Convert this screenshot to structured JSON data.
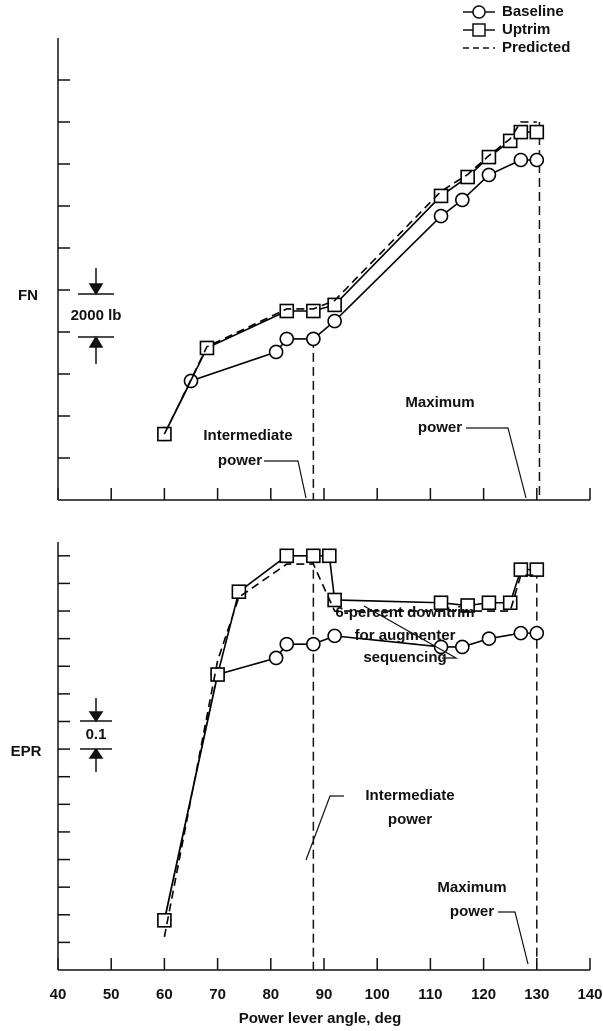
{
  "legend_names": [
    "Baseline",
    "Uptrim",
    "Predicted"
  ],
  "chart_data": [
    {
      "type": "line",
      "ylabel": "FN",
      "scale_label": "2000 lb",
      "xlim": [
        40,
        140
      ],
      "xticks": [
        40,
        50,
        60,
        70,
        80,
        90,
        100,
        110,
        120,
        130,
        140
      ],
      "ylim": [
        0,
        22000
      ],
      "yticks": [
        2000,
        4000,
        6000,
        8000,
        10000,
        12000,
        14000,
        16000,
        18000,
        20000
      ],
      "vlines": [
        {
          "x": 88,
          "from": 7670
        },
        {
          "x": 130.5,
          "from": 18000
        }
      ],
      "annotations": [
        {
          "text": [
            "Intermediate",
            "power"
          ]
        },
        {
          "text": [
            "Maximum",
            "power"
          ]
        }
      ],
      "series": [
        {
          "name": "Baseline",
          "marker": "circle",
          "color": "#000000",
          "x": [
            60,
            65,
            81,
            83,
            88,
            92,
            112,
            116,
            121,
            127,
            130
          ],
          "values": [
            3140,
            5670,
            7050,
            7670,
            7670,
            8520,
            13520,
            14290,
            15480,
            16190,
            16190
          ]
        },
        {
          "name": "Uptrim",
          "marker": "square",
          "color": "#000000",
          "x": [
            60,
            68,
            83,
            88,
            92,
            112,
            117,
            121,
            125,
            127,
            130
          ],
          "values": [
            3140,
            7240,
            9000,
            9000,
            9290,
            14480,
            15380,
            16330,
            17100,
            17520,
            17520
          ]
        },
        {
          "name": "Predicted",
          "marker": "dashed",
          "color": "#000000",
          "x": [
            60,
            68,
            83,
            88,
            92,
            112,
            117,
            121,
            125,
            127,
            130
          ],
          "values": [
            3140,
            7300,
            9100,
            9100,
            9500,
            14700,
            15500,
            16400,
            17200,
            18000,
            18000
          ]
        }
      ]
    },
    {
      "type": "line",
      "ylabel": "EPR",
      "scale_label": "0.1",
      "xlabel": "Power lever angle, deg",
      "xlim": [
        40,
        140
      ],
      "xticks": [
        40,
        50,
        60,
        70,
        80,
        90,
        100,
        110,
        120,
        130,
        140
      ],
      "ylim": [
        0,
        1.55
      ],
      "yticks": [
        0.1,
        0.2,
        0.3,
        0.4,
        0.5,
        0.6,
        0.7,
        0.8,
        0.9,
        1.0,
        1.1,
        1.2,
        1.3,
        1.4,
        1.5
      ],
      "vlines": [
        {
          "x": 88,
          "from": 1.5
        },
        {
          "x": 130,
          "from": 1.45
        }
      ],
      "annotations": [
        {
          "text": [
            "6-percent downtrim",
            "for augmenter",
            "sequencing"
          ]
        },
        {
          "text": [
            "Intermediate",
            "power"
          ]
        },
        {
          "text": [
            "Maximum",
            "power"
          ]
        }
      ],
      "series": [
        {
          "marker": "circle",
          "color": "#000000",
          "x": [
            60,
            70,
            81,
            83,
            88,
            92,
            112,
            116,
            121,
            127,
            130
          ],
          "values": [
            0.18,
            1.07,
            1.13,
            1.18,
            1.18,
            1.21,
            1.17,
            1.17,
            1.2,
            1.22,
            1.22
          ]
        },
        {
          "marker": "square",
          "color": "#000000",
          "x": [
            60,
            70,
            74,
            83,
            88,
            91,
            92,
            112,
            117,
            121,
            125,
            127,
            130
          ],
          "values": [
            0.18,
            1.07,
            1.37,
            1.5,
            1.5,
            1.5,
            1.34,
            1.33,
            1.32,
            1.33,
            1.33,
            1.45,
            1.45
          ]
        },
        {
          "marker": "dashed",
          "color": "#000000",
          "x": [
            60,
            70,
            74,
            83,
            88,
            92,
            112,
            125,
            127,
            130
          ],
          "values": [
            0.12,
            1.12,
            1.35,
            1.47,
            1.47,
            1.3,
            1.3,
            1.3,
            1.43,
            1.43
          ]
        }
      ]
    }
  ]
}
